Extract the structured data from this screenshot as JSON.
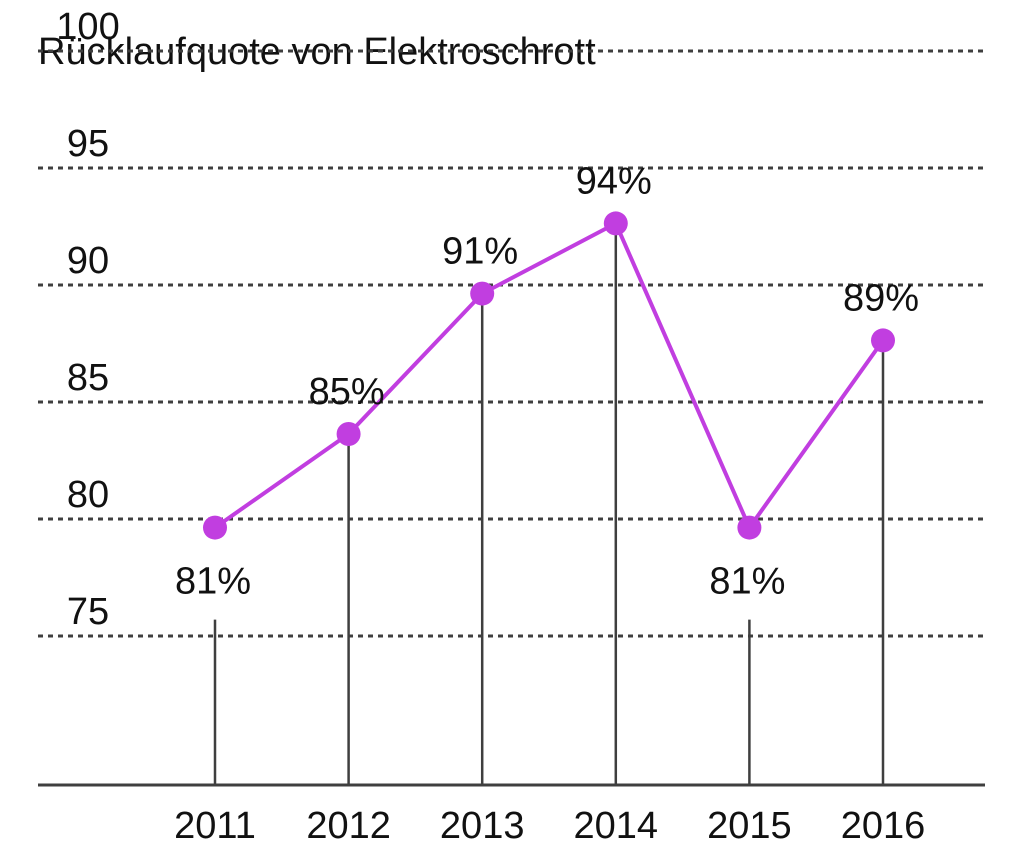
{
  "colors": {
    "line": "#c13ee0",
    "marker": "#c13ee0",
    "stem": "#3f3f3f",
    "grid": "#3f3f3f",
    "text": "#111111"
  },
  "chart_data": {
    "type": "line",
    "title": "Rücklaufquote von Elektroschrott",
    "xlabel": "",
    "ylabel": "",
    "categories": [
      "2011",
      "2012",
      "2013",
      "2014",
      "2015",
      "2016"
    ],
    "values": [
      81,
      85,
      91,
      94,
      81,
      89
    ],
    "data_labels": [
      "81%",
      "85%",
      "91%",
      "94%",
      "81%",
      "89%"
    ],
    "yticks": [
      75,
      80,
      85,
      90,
      95,
      100
    ],
    "ylim": [
      70,
      102.5
    ],
    "grid": true,
    "legend": "none"
  }
}
